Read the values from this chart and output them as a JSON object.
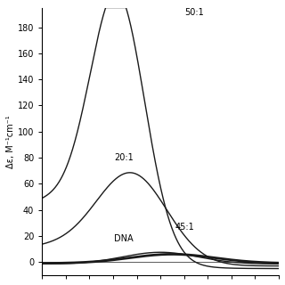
{
  "title": "",
  "ylabel": "Δε, M⁻¹cm⁻¹",
  "xlabel": "",
  "ylim": [
    -10,
    195
  ],
  "xlim": [
    0,
    10
  ],
  "yticks": [
    0,
    20,
    40,
    60,
    80,
    100,
    120,
    140,
    160,
    180
  ],
  "background_color": "#ffffff",
  "curve_color": "#1a1a1a",
  "lw_thin": 1.0,
  "lw_thick": 2.0
}
